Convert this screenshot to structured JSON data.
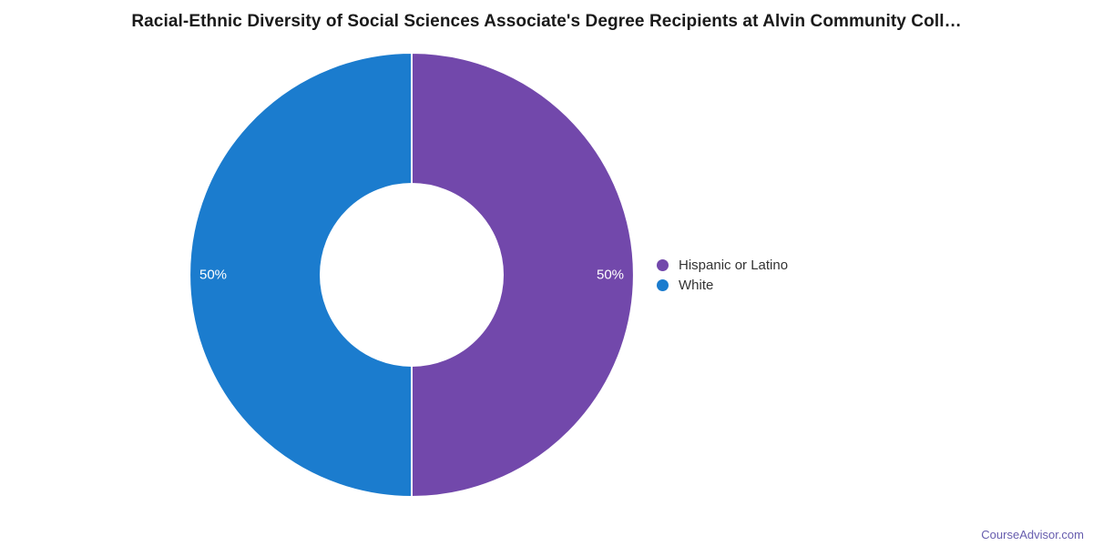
{
  "chart_data": {
    "type": "pie",
    "donut": true,
    "title": "Racial-Ethnic Diversity of Social Sciences Associate's Degree Recipients at Alvin Community Coll…",
    "legend_position": "right",
    "data_label_color": "#ffffff",
    "slices": [
      {
        "label": "Hispanic or Latino",
        "value": 50,
        "display": "50%",
        "color": "#7248ab"
      },
      {
        "label": "White",
        "value": 50,
        "display": "50%",
        "color": "#1b7cce"
      }
    ]
  },
  "legend": {
    "items": [
      {
        "label": "Hispanic or Latino",
        "color": "#7248ab"
      },
      {
        "label": "White",
        "color": "#1b7cce"
      }
    ]
  },
  "footer": {
    "text": "CourseAdvisor.com",
    "color": "#665cae"
  }
}
